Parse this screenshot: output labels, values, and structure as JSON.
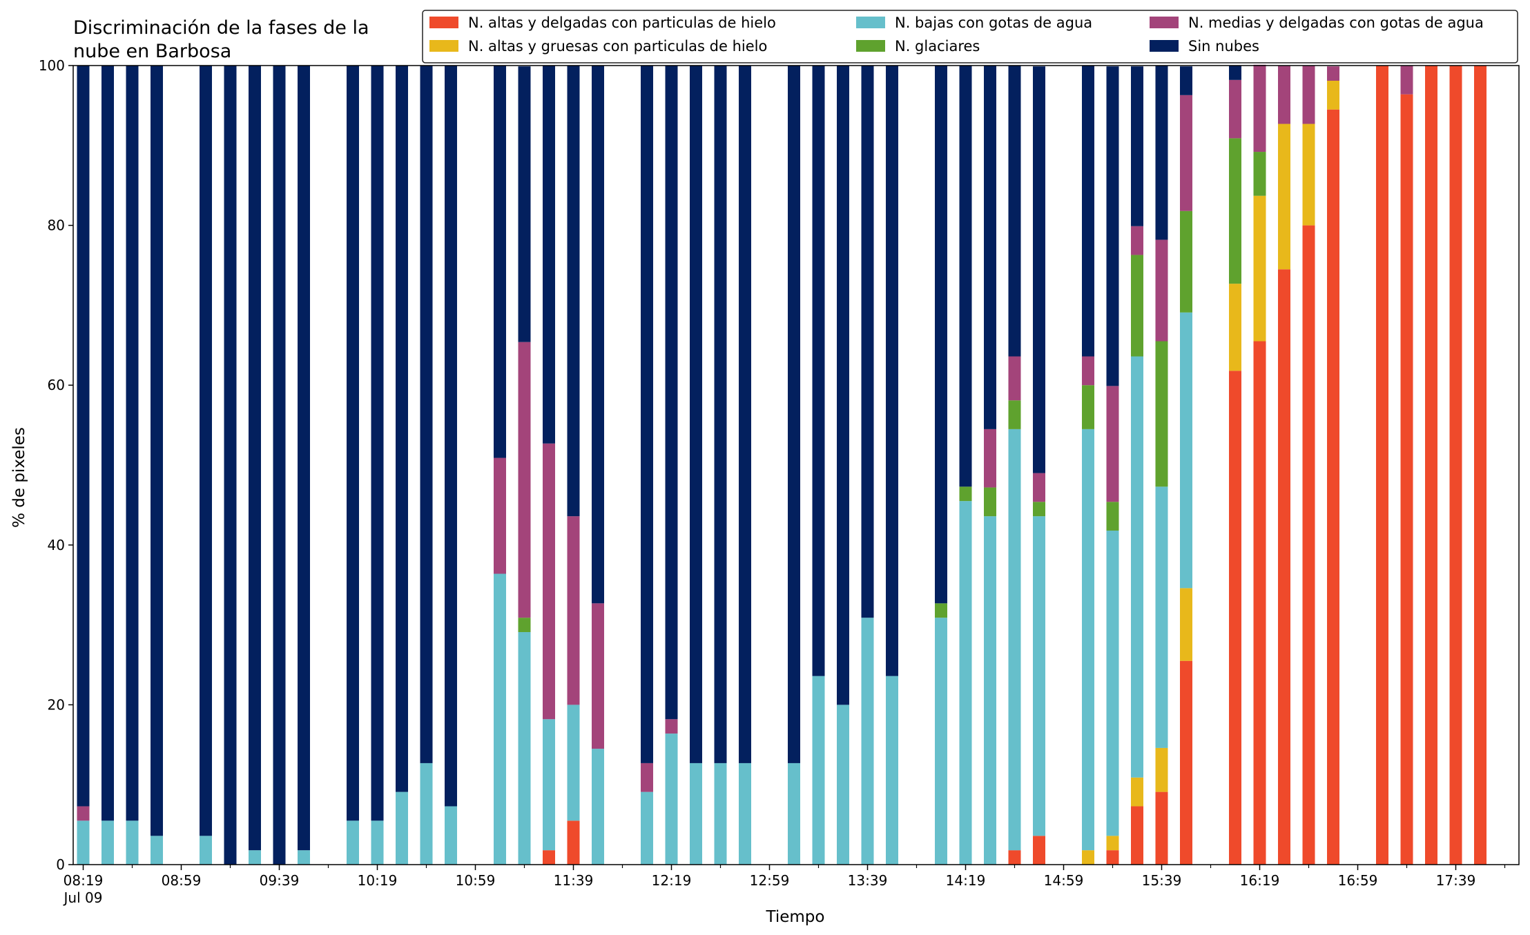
{
  "chart_data": {
    "type": "bar",
    "stacked": true,
    "title": [
      "Discriminación de la fases de la",
      "nube en Barbosa"
    ],
    "xlabel": "Tiempo",
    "ylabel": "% de pixeles",
    "ylim": [
      0,
      100
    ],
    "y_ticks": [
      0,
      20,
      40,
      60,
      80,
      100
    ],
    "grid": false,
    "legend_position": "top-right",
    "x_unit": "minutes since 08:19",
    "x_ticks": [
      {
        "x": 0,
        "label": "08:19",
        "sublabel": "Jul 09"
      },
      {
        "x": 40,
        "label": "08:59"
      },
      {
        "x": 80,
        "label": "09:39"
      },
      {
        "x": 120,
        "label": "10:19"
      },
      {
        "x": 160,
        "label": "10:59"
      },
      {
        "x": 200,
        "label": "11:39"
      },
      {
        "x": 240,
        "label": "12:19"
      },
      {
        "x": 280,
        "label": "12:59"
      },
      {
        "x": 320,
        "label": "13:39"
      },
      {
        "x": 360,
        "label": "14:19"
      },
      {
        "x": 400,
        "label": "14:59"
      },
      {
        "x": 440,
        "label": "15:39"
      },
      {
        "x": 480,
        "label": "16:19"
      },
      {
        "x": 520,
        "label": "16:59"
      },
      {
        "x": 560,
        "label": "17:39"
      }
    ],
    "x": [
      0,
      10,
      20,
      30,
      50,
      60,
      70,
      80,
      90,
      110,
      120,
      130,
      140,
      150,
      170,
      180,
      190,
      200,
      210,
      230,
      240,
      250,
      260,
      270,
      290,
      300,
      310,
      320,
      330,
      350,
      360,
      370,
      380,
      390,
      410,
      420,
      430,
      440,
      450,
      470,
      480,
      490,
      500,
      510,
      530,
      540,
      550,
      560,
      570
    ],
    "series": [
      {
        "name": "N. altas y delgadas con particulas de hielo",
        "color": "#ef4a2b",
        "values": [
          0,
          0,
          0,
          0,
          0,
          0,
          0,
          0,
          0,
          0,
          0,
          0,
          0,
          0,
          0,
          0,
          1.8,
          5.5,
          0,
          0,
          0,
          0,
          0,
          0,
          0,
          0,
          0,
          0,
          0,
          0,
          0,
          0,
          1.8,
          3.6,
          0,
          1.8,
          7.3,
          9.1,
          25.5,
          61.8,
          65.5,
          74.5,
          80,
          94.5,
          100,
          96.4,
          100,
          100,
          100
        ]
      },
      {
        "name": "N. altas y gruesas con particulas de hielo",
        "color": "#e8b81b",
        "values": [
          0,
          0,
          0,
          0,
          0,
          0,
          0,
          0,
          0,
          0,
          0,
          0,
          0,
          0,
          0,
          0,
          0,
          0,
          0,
          0,
          0,
          0,
          0,
          0,
          0,
          0,
          0,
          0,
          0,
          0,
          0,
          0,
          0,
          0,
          1.8,
          1.8,
          3.6,
          5.5,
          9.1,
          10.9,
          18.2,
          18.2,
          12.7,
          3.6,
          0,
          0,
          0,
          0,
          0
        ]
      },
      {
        "name": "N. bajas con gotas de agua",
        "color": "#66bfcb",
        "values": [
          5.5,
          5.5,
          5.5,
          3.6,
          3.6,
          0,
          1.8,
          0,
          1.8,
          5.5,
          5.5,
          9.1,
          12.7,
          7.3,
          36.4,
          29.1,
          16.4,
          14.5,
          14.5,
          9.1,
          16.4,
          12.7,
          12.7,
          12.7,
          12.7,
          23.6,
          20,
          30.9,
          23.6,
          30.9,
          45.5,
          43.6,
          52.7,
          40,
          52.7,
          38.2,
          52.7,
          32.7,
          34.5,
          0,
          0,
          0,
          0,
          0,
          0,
          0,
          0,
          0,
          0
        ]
      },
      {
        "name": "N. glaciares",
        "color": "#5fa22e",
        "values": [
          0,
          0,
          0,
          0,
          0,
          0,
          0,
          0,
          0,
          0,
          0,
          0,
          0,
          0,
          0,
          1.8,
          0,
          0,
          0,
          0,
          0,
          0,
          0,
          0,
          0,
          0,
          0,
          0,
          0,
          1.8,
          1.8,
          3.6,
          3.6,
          1.8,
          5.5,
          3.6,
          12.7,
          18.2,
          12.7,
          18.2,
          5.5,
          0,
          0,
          0,
          0,
          0,
          0,
          0,
          0
        ]
      },
      {
        "name": "N. medias y delgadas con gotas de agua",
        "color": "#a3447a",
        "values": [
          1.8,
          0,
          0,
          0,
          0,
          0,
          0,
          0,
          0,
          0,
          0,
          0,
          0,
          0,
          14.5,
          34.5,
          34.5,
          23.6,
          18.2,
          3.6,
          1.8,
          0,
          0,
          0,
          0,
          0,
          0,
          0,
          0,
          0,
          0,
          7.3,
          5.5,
          3.6,
          3.6,
          14.5,
          3.6,
          12.7,
          14.5,
          7.3,
          10.9,
          7.3,
          7.3,
          1.8,
          0,
          3.6,
          0,
          0,
          0
        ]
      },
      {
        "name": "Sin nubes",
        "color": "#03205e",
        "values": [
          92.7,
          94.5,
          94.5,
          96.4,
          96.4,
          100,
          98.2,
          100,
          98.2,
          94.5,
          94.5,
          90.9,
          87.3,
          92.7,
          49.1,
          34.5,
          47.3,
          56.4,
          67.3,
          87.3,
          81.8,
          87.3,
          87.3,
          87.3,
          87.3,
          76.4,
          80,
          69.1,
          76.4,
          67.3,
          52.7,
          45.5,
          36.4,
          50.9,
          36.4,
          40,
          20,
          21.8,
          3.6,
          1.8,
          0,
          0,
          0,
          0,
          0,
          0,
          0,
          0,
          0
        ]
      }
    ]
  }
}
